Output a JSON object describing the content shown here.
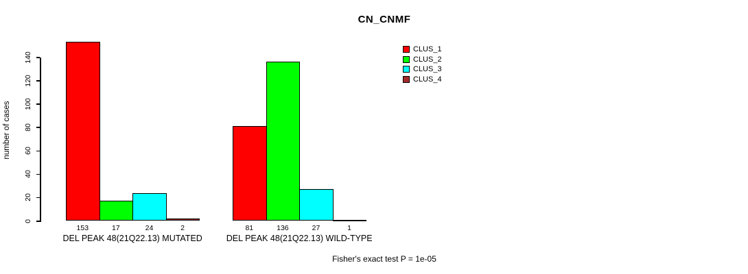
{
  "title": "CN_CNMF",
  "footer": "Fisher's exact test P = 1e-05",
  "chart_data": {
    "type": "bar",
    "title": "CN_CNMF",
    "xlabel": "",
    "ylabel": "number of cases",
    "ylim": [
      0,
      140
    ],
    "yticks": [
      0,
      20,
      40,
      60,
      80,
      100,
      120,
      140
    ],
    "grid": false,
    "legend_position": "top-right",
    "series": [
      {
        "name": "CLUS_1",
        "color": "#ff0000",
        "values": [
          153,
          81
        ]
      },
      {
        "name": "CLUS_2",
        "color": "#00ff00",
        "values": [
          17,
          136
        ]
      },
      {
        "name": "CLUS_3",
        "color": "#00ffff",
        "values": [
          24,
          27
        ]
      },
      {
        "name": "CLUS_4",
        "color": "#a52a2a",
        "values": [
          2,
          1
        ]
      }
    ],
    "groups": [
      {
        "label": "DEL PEAK 48(21Q22.13) MUTATED",
        "values": [
          153,
          17,
          24,
          2
        ]
      },
      {
        "label": "DEL PEAK 48(21Q22.13) WILD-TYPE",
        "values": [
          81,
          136,
          27,
          1
        ]
      }
    ],
    "bar_value_labels_shown": true,
    "annotation": "Fisher's exact test P = 1e-05"
  },
  "legend": {
    "items": [
      {
        "label": "CLUS_1",
        "color": "#ff0000"
      },
      {
        "label": "CLUS_2",
        "color": "#00ff00"
      },
      {
        "label": "CLUS_3",
        "color": "#00ffff"
      },
      {
        "label": "CLUS_4",
        "color": "#a52a2a"
      }
    ]
  }
}
